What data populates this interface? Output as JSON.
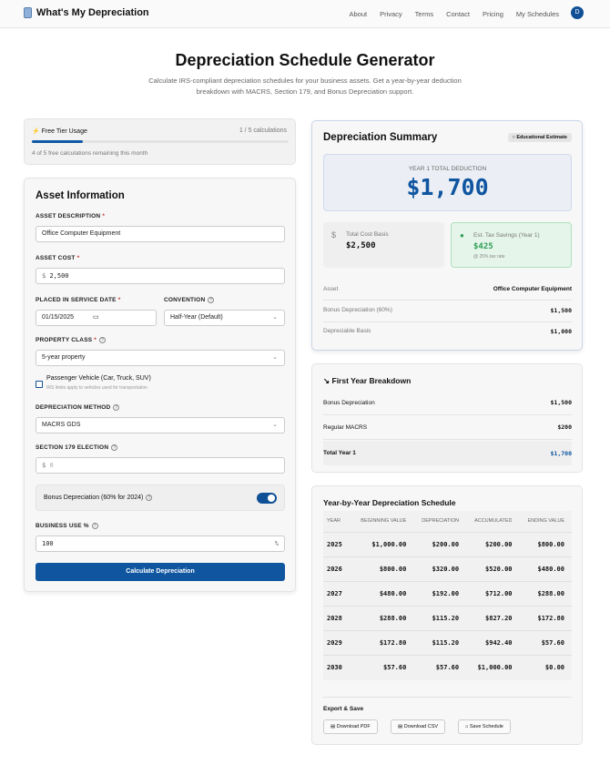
{
  "nav": {
    "brand": "What's My Depreciation",
    "links": [
      "About",
      "Privacy",
      "Terms",
      "Contact",
      "Pricing",
      "My Schedules"
    ],
    "avatar": "D"
  },
  "header": {
    "title": "Depreciation Schedule Generator",
    "subtitle": "Calculate IRS-compliant depreciation schedules for your business assets. Get a year-by-year deduction breakdown with MACRS, Section 179, and Bonus Depreciation support."
  },
  "usage": {
    "title": "Free Tier Usage",
    "count": "1 / 5 calculations",
    "progress": 0.2,
    "remaining": "4 of 5 free calculations remaining this month"
  },
  "form": {
    "title": "Asset Information",
    "desc_label": "ASSET DESCRIPTION",
    "desc_value": "Office Computer Equipment",
    "cost_label": "ASSET COST",
    "cost_prefix": "$",
    "cost_value": "2,500",
    "date_label": "PLACED IN SERVICE DATE",
    "date_value": "01/15/2025",
    "conv_label": "CONVENTION",
    "conv_value": "Half-Year (Default)",
    "class_label": "PROPERTY CLASS",
    "class_value": "5-year property",
    "vehicle_label": "Passenger Vehicle (Car, Truck, SUV)",
    "vehicle_hint": "IRS limits apply to vehicles used for transportation",
    "method_label": "DEPRECIATION METHOD",
    "method_value": "MACRS GDS",
    "s179_label": "SECTION 179 ELECTION",
    "s179_prefix": "$",
    "s179_placeholder": "0",
    "bonus_label": "Bonus Depreciation (60% for 2024)",
    "bonus_on": true,
    "use_label": "BUSINESS USE %",
    "use_value": "100",
    "use_suffix": "%",
    "submit": "Calculate Depreciation",
    "req": "*"
  },
  "summary": {
    "title": "Depreciation Summary",
    "badge": "Educational Estimate",
    "total_label": "YEAR 1 TOTAL DEDUCTION",
    "total_value": "$1,700",
    "basis_label": "Total Cost Basis",
    "basis_value": "$2,500",
    "savings_label": "Est. Tax Savings (Year 1)",
    "savings_value": "$425",
    "savings_note": "@ 25% tax rate",
    "rows": [
      {
        "k": "Asset",
        "v": "Office Computer Equipment"
      },
      {
        "k": "Bonus Depreciation (60%)",
        "v": "$1,500"
      },
      {
        "k": "Depreciable Basis",
        "v": "$1,000"
      }
    ]
  },
  "breakdown": {
    "title": "First Year Breakdown",
    "rows": [
      {
        "k": "Bonus Depreciation",
        "v": "$1,500"
      },
      {
        "k": "Regular MACRS",
        "v": "$200"
      },
      {
        "k": "Total Year 1",
        "v": "$1,700"
      }
    ]
  },
  "schedule": {
    "title": "Year-by-Year Depreciation Schedule",
    "headers": [
      "YEAR",
      "BEGINNING VALUE",
      "DEPRECIATION",
      "ACCUMULATED",
      "ENDING VALUE"
    ],
    "rows": [
      [
        "2025",
        "$1,000.00",
        "$200.00",
        "$200.00",
        "$800.00"
      ],
      [
        "2026",
        "$800.00",
        "$320.00",
        "$520.00",
        "$480.00"
      ],
      [
        "2027",
        "$480.00",
        "$192.00",
        "$712.00",
        "$288.00"
      ],
      [
        "2028",
        "$288.00",
        "$115.20",
        "$827.20",
        "$172.80"
      ],
      [
        "2029",
        "$172.80",
        "$115.20",
        "$942.40",
        "$57.60"
      ],
      [
        "2030",
        "$57.60",
        "$57.60",
        "$1,000.00",
        "$0.00"
      ]
    ],
    "export_title": "Export & Save",
    "buttons": [
      "Download PDF",
      "Download CSV",
      "Save Schedule"
    ]
  }
}
